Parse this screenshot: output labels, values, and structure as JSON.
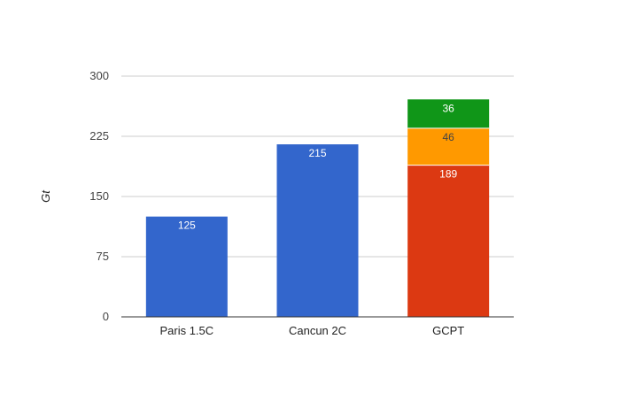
{
  "chart_data": {
    "type": "bar",
    "stacked": true,
    "title": "",
    "xlabel": "",
    "ylabel": "Gt",
    "ylim": [
      0,
      300
    ],
    "yticks": [
      0,
      75,
      150,
      225,
      300
    ],
    "grid": true,
    "legend": "none",
    "categories": [
      "Paris 1.5C",
      "Cancun 2C",
      "GCPT"
    ],
    "series": [
      {
        "values": [
          125,
          215,
          189
        ],
        "colors": [
          "#3366cc",
          "#3366cc",
          "#dc3912"
        ],
        "label_color": "#ffffff"
      },
      {
        "values": [
          0,
          0,
          46
        ],
        "colors": [
          "#ff9900",
          "#ff9900",
          "#ff9900"
        ],
        "label_color": "#444444"
      },
      {
        "values": [
          0,
          0,
          36
        ],
        "colors": [
          "#109618",
          "#109618",
          "#109618"
        ],
        "label_color": "#ffffff"
      }
    ],
    "colors": {
      "grid": "#cccccc",
      "axis": "#333333"
    }
  }
}
